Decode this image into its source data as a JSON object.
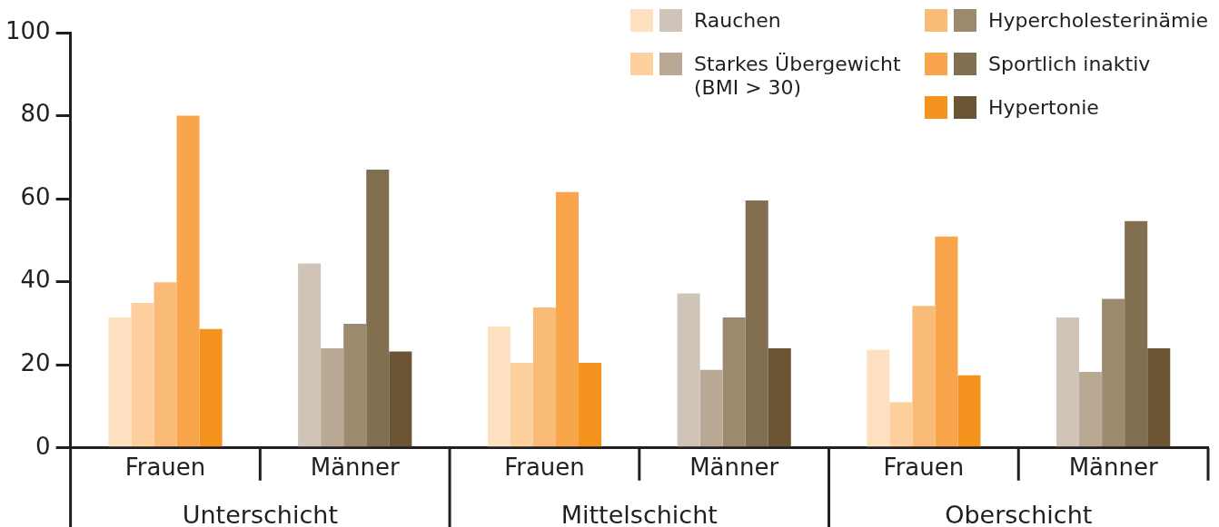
{
  "chart_data": {
    "type": "bar",
    "categories": [
      "Frauen",
      "Männer",
      "Frauen",
      "Männer",
      "Frauen",
      "Männer"
    ],
    "series": [
      {
        "name": "Rauchen",
        "colors": [
          "#fde0bf",
          "#cfc4b7",
          "#fde0bf",
          "#cfc4b7",
          "#fde0bf",
          "#cfc4b7"
        ],
        "values": [
          31.4,
          44.4,
          29.2,
          37.2,
          23.6,
          31.4
        ]
      },
      {
        "name": "Starkes Übergewicht (BMI > 30)",
        "colors": [
          "#fdd09d",
          "#b8a894",
          "#fdd09d",
          "#b8a894",
          "#fdd09d",
          "#b8a894"
        ],
        "values": [
          34.9,
          24.0,
          20.5,
          18.8,
          11.0,
          18.3
        ]
      },
      {
        "name": "Hypercholesterinämie",
        "colors": [
          "#fbbb78",
          "#9c8a6e",
          "#fbbb78",
          "#9c8a6e",
          "#fbbb78",
          "#9c8a6e"
        ],
        "values": [
          39.9,
          29.9,
          33.8,
          31.4,
          34.2,
          35.9
        ]
      },
      {
        "name": "Sportlich inaktiv",
        "colors": [
          "#f9a54b",
          "#826f50",
          "#f9a54b",
          "#826f50",
          "#f9a54b",
          "#826f50"
        ],
        "values": [
          80.0,
          67.0,
          61.6,
          59.6,
          50.9,
          54.6
        ]
      },
      {
        "name": "Hypertonie",
        "colors": [
          "#f4941f",
          "#6b5534",
          "#f4941f",
          "#6b5534",
          "#f4941f",
          "#6b5534"
        ],
        "values": [
          28.6,
          23.2,
          20.5,
          24.0,
          17.5,
          24.0
        ]
      }
    ],
    "annotations": [
      "Unterschicht",
      "Mittelschicht",
      "Oberschicht"
    ],
    "ylim": [
      0,
      100
    ],
    "yticks": [
      0,
      20,
      40,
      60,
      80,
      100
    ],
    "grid": false,
    "legend": "top right"
  }
}
